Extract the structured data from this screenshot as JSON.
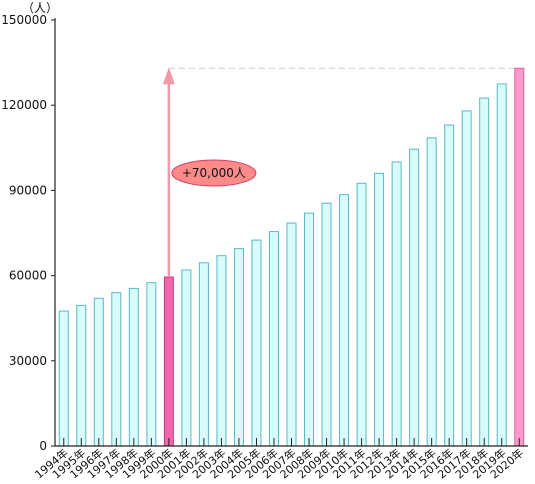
{
  "chart_data": {
    "type": "bar",
    "unit_label": "（人）",
    "categories": [
      "1994年",
      "1995年",
      "1996年",
      "1997年",
      "1998年",
      "1999年",
      "2000年",
      "2001年",
      "2002年",
      "2003年",
      "2004年",
      "2005年",
      "2006年",
      "2007年",
      "2008年",
      "2009年",
      "2010年",
      "2011年",
      "2012年",
      "2013年",
      "2014年",
      "2015年",
      "2016年",
      "2017年",
      "2018年",
      "2019年",
      "2020年"
    ],
    "values": [
      47500,
      49500,
      52000,
      54000,
      55500,
      57500,
      59500,
      62000,
      64500,
      67000,
      69500,
      72500,
      75500,
      78500,
      82000,
      85500,
      88500,
      92500,
      96000,
      100000,
      104500,
      108500,
      113000,
      118000,
      122500,
      127500,
      133000
    ],
    "highlight_categories": [
      "2000年",
      "2020年"
    ],
    "ylim": [
      0,
      150000
    ],
    "yticks": [
      0,
      30000,
      60000,
      90000,
      120000,
      150000
    ],
    "ytick_labels": [
      "0",
      "30000",
      "60000",
      "90000",
      "120000",
      "150000"
    ],
    "annotation": {
      "text": "+70,000人",
      "from_category": "2000年",
      "to_category": "2020年"
    },
    "colors": {
      "bar_fill": "#d8fcfc",
      "bar_stroke": "#5ab8c8",
      "highlight_2000_fill": "#f066aa",
      "highlight_2020_fill": "#ff99cc",
      "arrow": "#f29aa8",
      "callout_fill": "#ff8a8a",
      "callout_stroke": "#d04060",
      "axis": "#222222",
      "dashed_line": "#cccccc"
    }
  }
}
